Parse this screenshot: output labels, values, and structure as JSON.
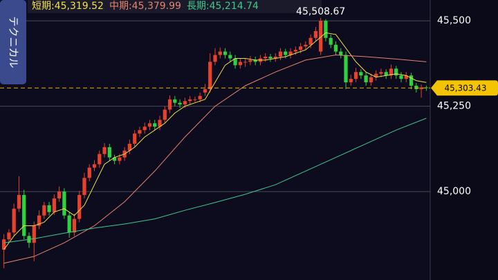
{
  "chart_data": {
    "type": "candlestick",
    "side_tab": "テクニカル",
    "up_color": "#e8412c",
    "down_color": "#2fd13f",
    "open": [
      44830,
      44860,
      44880,
      44950,
      44990,
      44870,
      44850,
      44900,
      44930,
      44960,
      44940,
      44980,
      45000,
      44930,
      44880,
      44920,
      44990,
      45040,
      45070,
      45080,
      45110,
      45130,
      45100,
      45090,
      45100,
      45120,
      45140,
      45170,
      45180,
      45190,
      45200,
      45190,
      45210,
      45240,
      45270,
      45260,
      45255,
      45265,
      45270,
      45270,
      45290,
      45300,
      45380,
      45400,
      45410,
      45400,
      45390,
      45370,
      45380,
      45380,
      45385,
      45380,
      45390,
      45395,
      45390,
      45395,
      45410,
      45400,
      45410,
      45415,
      45425,
      45430,
      45450,
      45410,
      45500,
      45450,
      45430,
      45410,
      45400,
      45320,
      45330,
      45350,
      45340,
      45320,
      45335,
      45345,
      45350,
      45340,
      45360,
      45340,
      45330,
      45340,
      45310,
      45300,
      45305
    ],
    "high": [
      44875,
      44890,
      44965,
      45045,
      45005,
      44880,
      44912,
      44945,
      44970,
      44970,
      44992,
      45015,
      45010,
      44940,
      44935,
      45002,
      45055,
      45080,
      45092,
      45120,
      45142,
      45140,
      45108,
      45110,
      45130,
      45152,
      45180,
      45190,
      45202,
      45210,
      45210,
      45222,
      45250,
      45282,
      45280,
      45270,
      45275,
      45280,
      45278,
      45290,
      45315,
      45405,
      45420,
      45422,
      45420,
      45410,
      45400,
      45390,
      45390,
      45397,
      45395,
      45400,
      45405,
      45403,
      45405,
      45420,
      45418,
      45420,
      45425,
      45435,
      45440,
      45460,
      45482,
      45508.67,
      45505,
      45460,
      45440,
      45420,
      45410,
      45342,
      45362,
      45358,
      45350,
      45345,
      45355,
      45360,
      45358,
      45372,
      45368,
      45350,
      45350,
      45348,
      45318,
      45313,
      45310
    ],
    "low": [
      44775,
      44850,
      44870,
      44940,
      44860,
      44835,
      44796,
      44890,
      44920,
      44930,
      44932,
      44970,
      44920,
      44865,
      44870,
      44910,
      44980,
      45030,
      45060,
      45070,
      45100,
      45090,
      45080,
      45080,
      45090,
      45110,
      45130,
      45160,
      45170,
      45180,
      45180,
      45180,
      45200,
      45230,
      45250,
      45245,
      45245,
      45255,
      45262,
      45262,
      45280,
      45290,
      45370,
      45390,
      45390,
      45380,
      45360,
      45360,
      45365,
      45370,
      45370,
      45370,
      45380,
      45380,
      45380,
      45385,
      45390,
      45390,
      45400,
      45405,
      45415,
      45420,
      45440,
      45400,
      45440,
      45420,
      45400,
      45390,
      45300,
      45310,
      45320,
      45330,
      45310,
      45310,
      45325,
      45335,
      45330,
      45330,
      45330,
      45320,
      45320,
      45300,
      45290,
      45275,
      45295
    ],
    "close": [
      44860,
      44880,
      44950,
      44990,
      44870,
      44850,
      44900,
      44930,
      44960,
      44940,
      44980,
      45000,
      44930,
      44880,
      44920,
      44990,
      45040,
      45070,
      45080,
      45110,
      45130,
      45100,
      45090,
      45100,
      45120,
      45140,
      45170,
      45180,
      45190,
      45200,
      45190,
      45210,
      45240,
      45270,
      45260,
      45255,
      45265,
      45270,
      45270,
      45280,
      45300,
      45380,
      45400,
      45410,
      45400,
      45390,
      45370,
      45380,
      45380,
      45385,
      45380,
      45390,
      45395,
      45390,
      45395,
      45410,
      45400,
      45410,
      45415,
      45425,
      45430,
      45450,
      45470,
      45500,
      45450,
      45430,
      45410,
      45400,
      45320,
      45330,
      45350,
      45340,
      45320,
      45335,
      45345,
      45350,
      45340,
      45360,
      45340,
      45330,
      45340,
      45310,
      45300,
      45305,
      45303.43
    ],
    "peak_label": "45,508.67",
    "last_price_label": "45,303.43",
    "series": [
      {
        "name": "短期:45,319.52",
        "color": "#f2e04a",
        "x": [
          0,
          2,
          4,
          6,
          8,
          10,
          12,
          14,
          16,
          18,
          20,
          22,
          24,
          26,
          28,
          30,
          32,
          34,
          36,
          38,
          40,
          42,
          44,
          46,
          48,
          50,
          52,
          54,
          56,
          58,
          60,
          62,
          64,
          66,
          68,
          70,
          72,
          74,
          76,
          78,
          80,
          82,
          84
        ],
        "values": [
          44830,
          44870,
          44900,
          44900,
          44910,
          44940,
          44950,
          44930,
          44960,
          45020,
          45080,
          45100,
          45110,
          45130,
          45160,
          45180,
          45200,
          45230,
          45250,
          45260,
          45270,
          45320,
          45370,
          45390,
          45390,
          45385,
          45385,
          45390,
          45395,
          45405,
          45415,
          45440,
          45465,
          45460,
          45420,
          45380,
          45350,
          45335,
          45340,
          45345,
          45340,
          45325,
          45319.52
        ]
      },
      {
        "name": "中期:45,379.99",
        "color": "#e8846a",
        "x": [
          0,
          6,
          12,
          18,
          24,
          30,
          36,
          42,
          48,
          54,
          60,
          66,
          72,
          78,
          84
        ],
        "values": [
          44790,
          44810,
          44850,
          44900,
          44970,
          45060,
          45160,
          45250,
          45310,
          45350,
          45385,
          45400,
          45395,
          45388,
          45379.99
        ]
      },
      {
        "name": "長期:45,214.74",
        "color": "#3fc98a",
        "x": [
          0,
          6,
          12,
          18,
          24,
          30,
          36,
          42,
          48,
          54,
          60,
          66,
          72,
          78,
          84
        ],
        "values": [
          44850,
          44862,
          44878,
          44893,
          44905,
          44920,
          44945,
          44968,
          44992,
          45020,
          45060,
          45100,
          45140,
          45180,
          45214.74
        ]
      }
    ],
    "ylim": [
      44741,
      45561
    ],
    "yticks": [
      {
        "value": 45000,
        "label": "45,000"
      },
      {
        "value": 45250,
        "label": "45,250"
      },
      {
        "value": 45500,
        "label": "45,500"
      }
    ],
    "grid": true
  }
}
